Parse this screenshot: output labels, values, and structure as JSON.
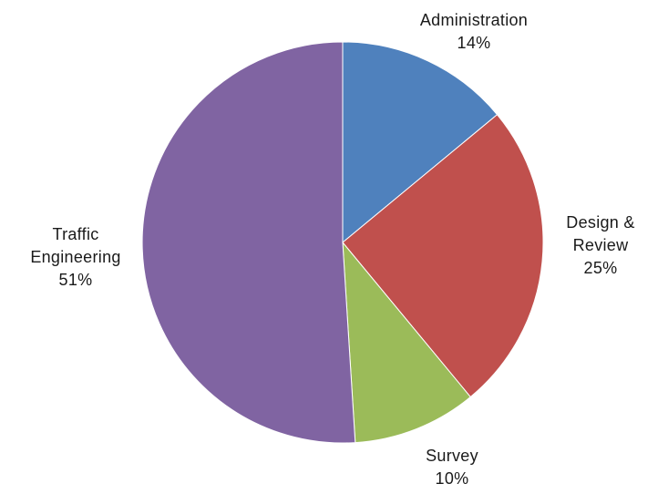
{
  "chart_data": {
    "type": "pie",
    "title": "",
    "start_angle_deg": 0,
    "direction": "clockwise",
    "legend": "none",
    "slices": [
      {
        "label": "Administration",
        "label_lines": [
          "Administration"
        ],
        "value": 14,
        "value_label": "14%",
        "color": "#4f81bd"
      },
      {
        "label": "Design & Review",
        "label_lines": [
          "Design &",
          "Review"
        ],
        "value": 25,
        "value_label": "25%",
        "color": "#c0504d"
      },
      {
        "label": "Survey",
        "label_lines": [
          "Survey"
        ],
        "value": 10,
        "value_label": "10%",
        "color": "#9bbb59"
      },
      {
        "label": "Traffic Engineering",
        "label_lines": [
          "Traffic",
          "Engineering"
        ],
        "value": 51,
        "value_label": "51%",
        "color": "#8064a2"
      }
    ]
  }
}
